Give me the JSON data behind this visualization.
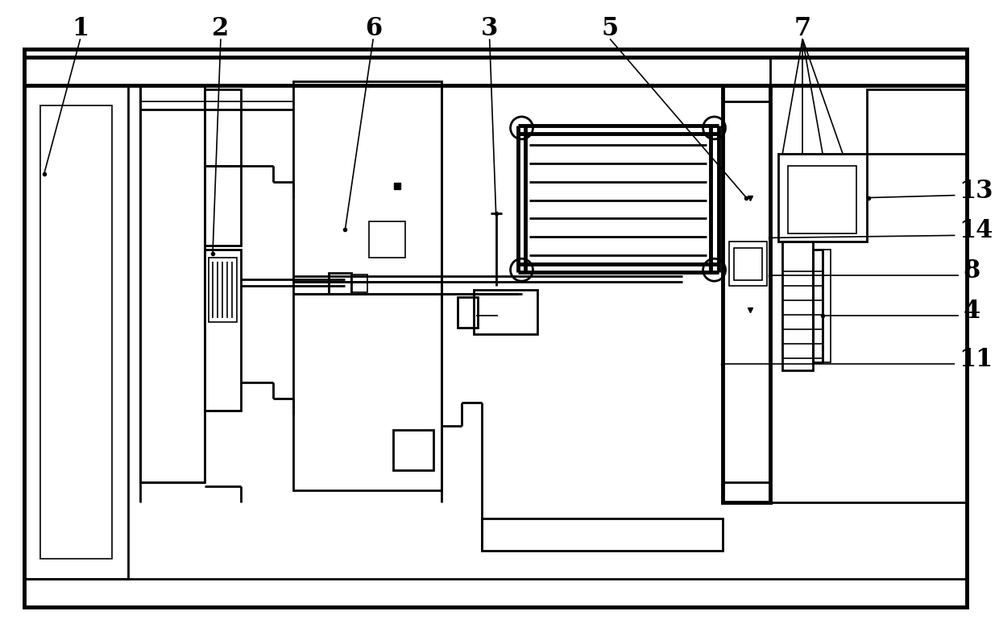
{
  "bg_color": "#ffffff",
  "lc": "#000000",
  "lw1": 1.2,
  "lw2": 2.0,
  "lw3": 3.5,
  "fig_width": 12.4,
  "fig_height": 7.85
}
